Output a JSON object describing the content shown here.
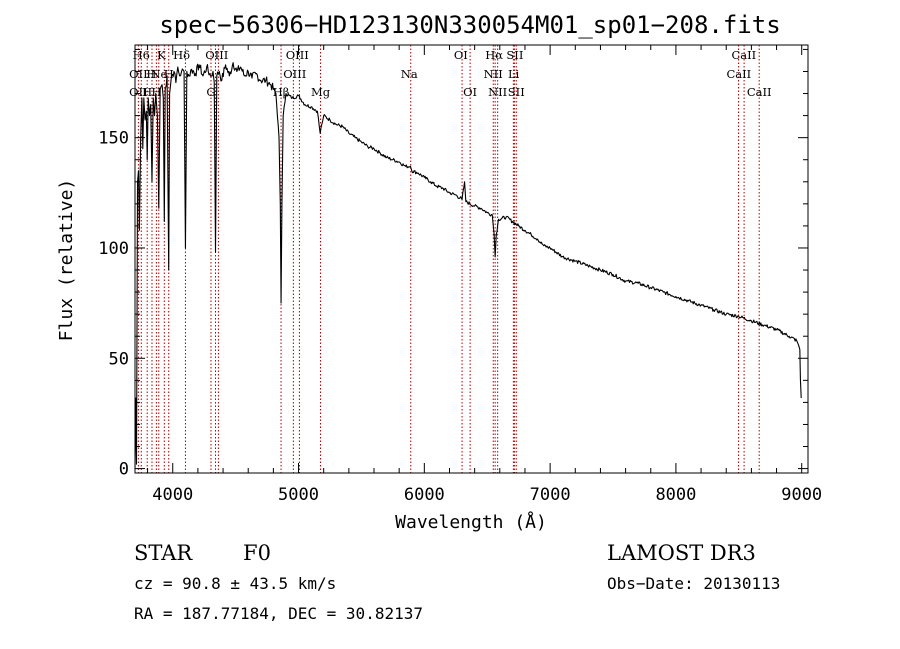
{
  "chart_data": {
    "type": "line",
    "title": "spec−56306−HD123130N330054M01_sp01−208.fits",
    "xlabel": "Wavelength (Å)",
    "ylabel": "Flux (relative)",
    "xlim": [
      3700,
      9050
    ],
    "ylim": [
      -2,
      192
    ],
    "xticks": [
      4000,
      5000,
      6000,
      7000,
      8000,
      9000
    ],
    "yticks": [
      0,
      50,
      100,
      150
    ],
    "series": [
      {
        "name": "flux",
        "points": [
          [
            3700,
            0
          ],
          [
            3705,
            32
          ],
          [
            3712,
            2
          ],
          [
            3720,
            130
          ],
          [
            3728,
            135
          ],
          [
            3735,
            108
          ],
          [
            3745,
            150
          ],
          [
            3755,
            168
          ],
          [
            3762,
            145
          ],
          [
            3770,
            168
          ],
          [
            3780,
            158
          ],
          [
            3790,
            162
          ],
          [
            3797,
            140
          ],
          [
            3805,
            168
          ],
          [
            3815,
            160
          ],
          [
            3825,
            165
          ],
          [
            3835,
            130
          ],
          [
            3845,
            168
          ],
          [
            3855,
            160
          ],
          [
            3865,
            170
          ],
          [
            3878,
            160
          ],
          [
            3889,
            118
          ],
          [
            3900,
            172
          ],
          [
            3915,
            174
          ],
          [
            3925,
            168
          ],
          [
            3933,
            112
          ],
          [
            3940,
            172
          ],
          [
            3955,
            178
          ],
          [
            3968,
            90
          ],
          [
            3975,
            170
          ],
          [
            3990,
            178
          ],
          [
            4010,
            180
          ],
          [
            4025,
            175
          ],
          [
            4040,
            182
          ],
          [
            4055,
            178
          ],
          [
            4070,
            180
          ],
          [
            4090,
            180
          ],
          [
            4101,
            100
          ],
          [
            4112,
            180
          ],
          [
            4130,
            178
          ],
          [
            4150,
            181
          ],
          [
            4180,
            179
          ],
          [
            4210,
            183
          ],
          [
            4240,
            178
          ],
          [
            4270,
            182
          ],
          [
            4300,
            178
          ],
          [
            4320,
            180
          ],
          [
            4330,
            175
          ],
          [
            4340,
            98
          ],
          [
            4350,
            178
          ],
          [
            4370,
            180
          ],
          [
            4390,
            176
          ],
          [
            4420,
            183
          ],
          [
            4450,
            178
          ],
          [
            4480,
            184
          ],
          [
            4510,
            180
          ],
          [
            4540,
            182
          ],
          [
            4570,
            178
          ],
          [
            4600,
            180
          ],
          [
            4630,
            177
          ],
          [
            4660,
            179
          ],
          [
            4700,
            176
          ],
          [
            4740,
            176
          ],
          [
            4780,
            174
          ],
          [
            4820,
            170
          ],
          [
            4845,
            150
          ],
          [
            4855,
            120
          ],
          [
            4861,
            75
          ],
          [
            4868,
            120
          ],
          [
            4878,
            160
          ],
          [
            4900,
            170
          ],
          [
            4950,
            168
          ],
          [
            5000,
            169
          ],
          [
            5050,
            165
          ],
          [
            5100,
            164
          ],
          [
            5150,
            162
          ],
          [
            5172,
            152
          ],
          [
            5185,
            156
          ],
          [
            5200,
            160
          ],
          [
            5250,
            158
          ],
          [
            5300,
            156
          ],
          [
            5350,
            155
          ],
          [
            5400,
            152
          ],
          [
            5450,
            150
          ],
          [
            5500,
            148
          ],
          [
            5550,
            146
          ],
          [
            5600,
            145
          ],
          [
            5650,
            143
          ],
          [
            5700,
            141
          ],
          [
            5750,
            140
          ],
          [
            5800,
            139
          ],
          [
            5850,
            137
          ],
          [
            5890,
            137
          ],
          [
            5900,
            135
          ],
          [
            5950,
            134
          ],
          [
            6000,
            132
          ],
          [
            6050,
            130
          ],
          [
            6100,
            128
          ],
          [
            6150,
            127
          ],
          [
            6200,
            125
          ],
          [
            6250,
            124
          ],
          [
            6300,
            122
          ],
          [
            6320,
            130
          ],
          [
            6330,
            121
          ],
          [
            6400,
            119
          ],
          [
            6450,
            118
          ],
          [
            6500,
            116
          ],
          [
            6540,
            115
          ],
          [
            6555,
            106
          ],
          [
            6563,
            96
          ],
          [
            6572,
            106
          ],
          [
            6590,
            113
          ],
          [
            6650,
            114
          ],
          [
            6700,
            112
          ],
          [
            6750,
            110
          ],
          [
            6800,
            108
          ],
          [
            6850,
            106
          ],
          [
            6900,
            104
          ],
          [
            6950,
            101
          ],
          [
            7000,
            100
          ],
          [
            7100,
            96
          ],
          [
            7200,
            94
          ],
          [
            7300,
            92
          ],
          [
            7400,
            90
          ],
          [
            7500,
            88
          ],
          [
            7600,
            85
          ],
          [
            7700,
            84
          ],
          [
            7800,
            82
          ],
          [
            7900,
            80
          ],
          [
            8000,
            78
          ],
          [
            8100,
            76
          ],
          [
            8200,
            74
          ],
          [
            8300,
            72
          ],
          [
            8400,
            70
          ],
          [
            8500,
            69
          ],
          [
            8600,
            67
          ],
          [
            8700,
            65
          ],
          [
            8800,
            63
          ],
          [
            8900,
            60
          ],
          [
            8960,
            58
          ],
          [
            8975,
            56
          ],
          [
            8985,
            54
          ],
          [
            8990,
            40
          ],
          [
            8996,
            32
          ]
        ]
      }
    ],
    "line_markers": [
      {
        "wavelength": 3727,
        "label": "OII"
      },
      {
        "wavelength": 3750,
        "label": "H6"
      },
      {
        "wavelength": 3797,
        "label": "H"
      },
      {
        "wavelength": 3835,
        "label": "H"
      },
      {
        "wavelength": 3870,
        "label": "Ne"
      },
      {
        "wavelength": 3889,
        "label": "H"
      },
      {
        "wavelength": 3933,
        "label": "K"
      },
      {
        "wavelength": 3968,
        "label": "H"
      },
      {
        "wavelength": 4101,
        "label": "Hδ"
      },
      {
        "wavelength": 4304,
        "label": "G"
      },
      {
        "wavelength": 4340,
        "label": "Hγ"
      },
      {
        "wavelength": 4363,
        "label": "OIII"
      },
      {
        "wavelength": 4861,
        "label": "Hβ"
      },
      {
        "wavelength": 4959,
        "label": "OIII"
      },
      {
        "wavelength": 5007,
        "label": "OIII"
      },
      {
        "wavelength": 5175,
        "label": "Mg"
      },
      {
        "wavelength": 5892,
        "label": "Na"
      },
      {
        "wavelength": 6300,
        "label": "OI"
      },
      {
        "wavelength": 6364,
        "label": "OI"
      },
      {
        "wavelength": 6548,
        "label": "NII"
      },
      {
        "wavelength": 6563,
        "label": "Hα"
      },
      {
        "wavelength": 6583,
        "label": "NII"
      },
      {
        "wavelength": 6708,
        "label": "Li"
      },
      {
        "wavelength": 6716,
        "label": "SII"
      },
      {
        "wavelength": 6731,
        "label": "SII"
      },
      {
        "wavelength": 8498,
        "label": "CaII"
      },
      {
        "wavelength": 8542,
        "label": "CaII"
      },
      {
        "wavelength": 8662,
        "label": "CaII"
      }
    ],
    "line_label_texts": [
      {
        "text": "H6",
        "wl": 3750,
        "row": 0
      },
      {
        "text": "K",
        "wl": 3910,
        "row": 0
      },
      {
        "text": "Hδ",
        "wl": 4070,
        "row": 0
      },
      {
        "text": "OIII",
        "wl": 4350,
        "row": 0
      },
      {
        "text": "OIII",
        "wl": 4990,
        "row": 0
      },
      {
        "text": "OI",
        "wl": 6290,
        "row": 0
      },
      {
        "text": "Hα",
        "wl": 6555,
        "row": 0
      },
      {
        "text": "SII",
        "wl": 6720,
        "row": 0
      },
      {
        "text": "CaII",
        "wl": 8540,
        "row": 0
      },
      {
        "text": "OII",
        "wl": 3727,
        "row": 1
      },
      {
        "text": "H",
        "wl": 3830,
        "row": 1
      },
      {
        "text": "Ne",
        "wl": 3890,
        "row": 1
      },
      {
        "text": "H",
        "wl": 3968,
        "row": 1
      },
      {
        "text": "OIII",
        "wl": 4970,
        "row": 1
      },
      {
        "text": "Na",
        "wl": 5880,
        "row": 1
      },
      {
        "text": "NII",
        "wl": 6548,
        "row": 1
      },
      {
        "text": "Li",
        "wl": 6710,
        "row": 1
      },
      {
        "text": "CaII",
        "wl": 8500,
        "row": 1
      },
      {
        "text": "OII",
        "wl": 3727,
        "row": 2
      },
      {
        "text": "H",
        "wl": 3797,
        "row": 2
      },
      {
        "text": "H",
        "wl": 3870,
        "row": 2
      },
      {
        "text": "G",
        "wl": 4304,
        "row": 2
      },
      {
        "text": "Hβ",
        "wl": 4861,
        "row": 2
      },
      {
        "text": "Mg",
        "wl": 5175,
        "row": 2
      },
      {
        "text": "OI",
        "wl": 6364,
        "row": 2
      },
      {
        "text": "NII",
        "wl": 6583,
        "row": 2
      },
      {
        "text": "SII",
        "wl": 6731,
        "row": 2
      },
      {
        "text": "CaII",
        "wl": 8662,
        "row": 2
      }
    ],
    "annotations": {
      "object_type": "STAR",
      "subclass": "F0",
      "survey": "LAMOST DR3",
      "redshift": "cz = 90.8 ± 43.5 km/s",
      "obs_date": "Obs−Date: 20130113",
      "coords": "RA = 187.77184, DEC =  30.82137"
    },
    "colors": {
      "spectrum": "#000000",
      "marker_lines": "#b00000",
      "frame": "#000000"
    }
  }
}
